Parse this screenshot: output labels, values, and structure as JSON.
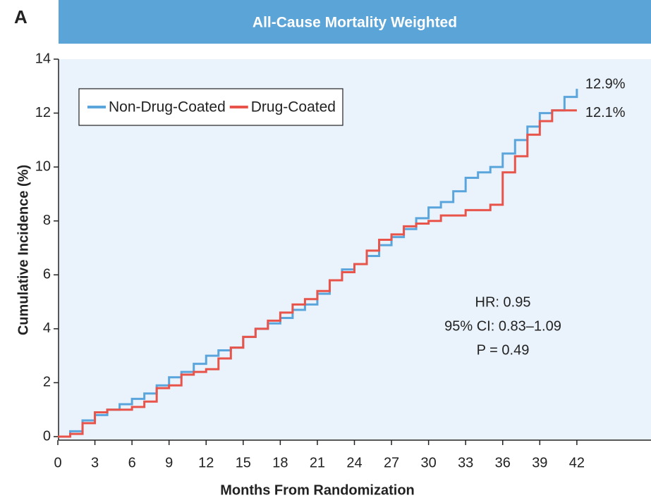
{
  "chart_data": {
    "type": "step",
    "panel_label": "A",
    "title": "All-Cause Mortality Weighted",
    "xlabel": "Months From Randomization",
    "ylabel": "Cumulative Incidence (%)",
    "x": [
      0,
      1,
      2,
      3,
      4,
      5,
      6,
      7,
      8,
      9,
      10,
      11,
      12,
      13,
      14,
      15,
      16,
      17,
      18,
      19,
      20,
      21,
      22,
      23,
      24,
      25,
      26,
      27,
      28,
      29,
      30,
      31,
      32,
      33,
      34,
      35,
      36,
      37,
      38,
      39,
      40,
      41,
      42
    ],
    "series": [
      {
        "name": "Non-Drug-Coated",
        "color": "#5aa5dc",
        "values": [
          0,
          0.2,
          0.6,
          0.8,
          1.0,
          1.2,
          1.4,
          1.6,
          1.9,
          2.2,
          2.4,
          2.7,
          3.0,
          3.2,
          3.3,
          3.7,
          4.0,
          4.2,
          4.4,
          4.7,
          4.9,
          5.3,
          5.8,
          6.2,
          6.4,
          6.7,
          7.1,
          7.4,
          7.7,
          8.1,
          8.5,
          8.7,
          9.1,
          9.6,
          9.8,
          10.0,
          10.5,
          11.0,
          11.5,
          12.0,
          12.1,
          12.6,
          12.9
        ],
        "value_labels": [
          null,
          null,
          null,
          null,
          null,
          null,
          null,
          null,
          null,
          null,
          null,
          null,
          null,
          null,
          null,
          null,
          null,
          null,
          null,
          null,
          null,
          null,
          null,
          null,
          null,
          null,
          null,
          null,
          null,
          null,
          null,
          null,
          null,
          null,
          null,
          null,
          null,
          null,
          null,
          null,
          null,
          null,
          "12.9%"
        ]
      },
      {
        "name": "Drug-Coated",
        "color": "#e8534a",
        "values": [
          0,
          0.1,
          0.5,
          0.9,
          1.0,
          1.0,
          1.1,
          1.3,
          1.8,
          1.9,
          2.3,
          2.4,
          2.5,
          2.9,
          3.3,
          3.7,
          4.0,
          4.3,
          4.6,
          4.9,
          5.1,
          5.4,
          5.8,
          6.1,
          6.4,
          6.9,
          7.3,
          7.5,
          7.8,
          7.9,
          8.0,
          8.2,
          8.2,
          8.4,
          8.4,
          8.6,
          9.8,
          10.4,
          11.2,
          11.7,
          12.1,
          12.1,
          12.1
        ],
        "value_labels": [
          null,
          null,
          null,
          null,
          null,
          null,
          null,
          null,
          null,
          null,
          null,
          null,
          null,
          null,
          null,
          null,
          null,
          null,
          null,
          null,
          null,
          null,
          null,
          null,
          null,
          null,
          null,
          null,
          null,
          null,
          null,
          null,
          null,
          null,
          null,
          null,
          null,
          null,
          null,
          null,
          null,
          null,
          "12.1%"
        ]
      }
    ],
    "xlim": [
      0,
      48
    ],
    "xticks": [
      0,
      3,
      6,
      9,
      12,
      15,
      18,
      21,
      24,
      27,
      30,
      33,
      36,
      39,
      42
    ],
    "ylim": [
      0,
      14
    ],
    "yticks": [
      0,
      2,
      4,
      6,
      8,
      10,
      12,
      14
    ],
    "legend": "upper left",
    "annotations": [
      "HR: 0.95",
      "95% CI: 0.83–1.09",
      "P = 0.49"
    ]
  }
}
